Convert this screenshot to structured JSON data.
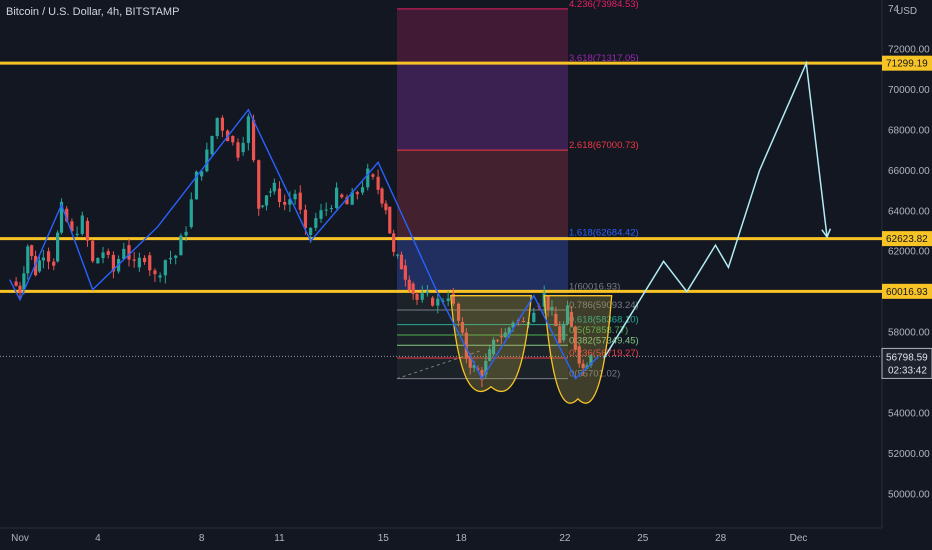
{
  "header": {
    "title": "Bitcoin / U.S. Dollar, 4h, BITSTAMP",
    "currency": "USD"
  },
  "chart_data": {
    "type": "candlestick",
    "title": "Bitcoin / U.S. Dollar, 4h, BITSTAMP",
    "xlabel": "",
    "ylabel": "",
    "ylim": [
      48500,
      74500
    ],
    "grid": false,
    "x_ticks": [
      {
        "label": "Nov",
        "day": 1
      },
      {
        "label": "4",
        "day": 4
      },
      {
        "label": "8",
        "day": 8
      },
      {
        "label": "11",
        "day": 11
      },
      {
        "label": "15",
        "day": 15
      },
      {
        "label": "18",
        "day": 18
      },
      {
        "label": "22",
        "day": 22
      },
      {
        "label": "25",
        "day": 25
      },
      {
        "label": "28",
        "day": 28
      },
      {
        "label": "Dec",
        "day": 31
      }
    ],
    "y_ticks": [
      "50000.00",
      "52000.00",
      "54000.00",
      "56000.00",
      "58000.00",
      "60000.00",
      "62000.00",
      "64000.00",
      "66000.00",
      "68000.00",
      "70000.00",
      "72000.00",
      "74"
    ],
    "price_path": [
      [
        0.7,
        60500
      ],
      [
        1.0,
        60100
      ],
      [
        1.3,
        62300
      ],
      [
        1.6,
        61000
      ],
      [
        1.9,
        62000
      ],
      [
        2.3,
        61500
      ],
      [
        2.6,
        64100
      ],
      [
        3.0,
        62800
      ],
      [
        3.4,
        63500
      ],
      [
        3.8,
        61400
      ],
      [
        4.2,
        62000
      ],
      [
        4.6,
        61000
      ],
      [
        5.0,
        62300
      ],
      [
        5.4,
        61200
      ],
      [
        5.8,
        61800
      ],
      [
        6.2,
        60700
      ],
      [
        6.6,
        61600
      ],
      [
        7.0,
        61800
      ],
      [
        7.4,
        63200
      ],
      [
        7.8,
        65700
      ],
      [
        8.2,
        66800
      ],
      [
        8.6,
        68600
      ],
      [
        9.0,
        67700
      ],
      [
        9.4,
        66900
      ],
      [
        9.8,
        68500
      ],
      [
        10.2,
        64200
      ],
      [
        10.5,
        64900
      ],
      [
        10.8,
        65100
      ],
      [
        11.2,
        64300
      ],
      [
        11.6,
        64900
      ],
      [
        12.0,
        62800
      ],
      [
        12.4,
        63600
      ],
      [
        12.8,
        64100
      ],
      [
        13.2,
        64800
      ],
      [
        13.6,
        64300
      ],
      [
        14.0,
        64900
      ],
      [
        14.4,
        65800
      ],
      [
        14.8,
        65100
      ],
      [
        15.1,
        64200
      ],
      [
        15.4,
        61800
      ],
      [
        15.7,
        61300
      ],
      [
        16.0,
        60400
      ],
      [
        16.3,
        59600
      ],
      [
        16.7,
        59700
      ],
      [
        17.1,
        59500
      ],
      [
        17.5,
        59900
      ],
      [
        17.9,
        58500
      ],
      [
        18.2,
        56800
      ],
      [
        18.5,
        56200
      ],
      [
        18.8,
        55900
      ],
      [
        19.1,
        56900
      ],
      [
        19.4,
        57800
      ],
      [
        19.7,
        57900
      ],
      [
        20.0,
        58600
      ],
      [
        20.4,
        58400
      ],
      [
        20.8,
        59300
      ],
      [
        21.2,
        59800
      ],
      [
        21.5,
        58900
      ],
      [
        21.8,
        57600
      ],
      [
        22.1,
        59000
      ],
      [
        22.4,
        57300
      ],
      [
        22.7,
        56200
      ],
      [
        23.0,
        57100
      ]
    ],
    "series": [
      {
        "name": "",
        "type": "zigzag",
        "points": [
          [
            0.6,
            60600
          ],
          [
            1.0,
            59600
          ],
          [
            2.6,
            64300
          ],
          [
            3.8,
            60100
          ],
          [
            6.3,
            63200
          ],
          [
            9.8,
            69000
          ],
          [
            12.2,
            62500
          ],
          [
            14.8,
            66400
          ],
          [
            17.0,
            60200
          ],
          [
            18.8,
            55700
          ],
          [
            20.8,
            59800
          ],
          [
            22.4,
            55700
          ],
          [
            23.3,
            56800
          ]
        ]
      },
      {
        "name": "",
        "type": "projection",
        "points": [
          [
            23.5,
            56700
          ],
          [
            25.8,
            61500
          ],
          [
            26.7,
            60000
          ],
          [
            27.8,
            62300
          ],
          [
            28.3,
            61200
          ],
          [
            29.5,
            66000
          ],
          [
            31.3,
            71300
          ],
          [
            32.1,
            62700
          ]
        ]
      },
      {
        "name": "",
        "type": "fibonacci",
        "from": [
          15.3,
          55700
        ],
        "to": [
          15.3,
          60016.93
        ],
        "levels": [
          {
            "ratio": "4.236",
            "value": 73984.53
          },
          {
            "ratio": "3.618",
            "value": 71317.05
          },
          {
            "ratio": "2.618",
            "value": 67000.73
          },
          {
            "ratio": "1.618",
            "value": 62684.42
          },
          {
            "ratio": "1",
            "value": 60016.93
          },
          {
            "ratio": "0.786",
            "value": 59093.24
          },
          {
            "ratio": "0.618",
            "value": 58368.1
          },
          {
            "ratio": "0.5",
            "value": 57858.77
          },
          {
            "ratio": "0.382",
            "value": 57349.45
          },
          {
            "ratio": "0.236",
            "value": 56719.27
          },
          {
            "ratio": "0",
            "value": 55701.02
          }
        ]
      }
    ],
    "annotations": [
      {
        "type": "horizontal-line",
        "value": 71299.19,
        "label": "71299.19",
        "color": "#f7c325"
      },
      {
        "type": "horizontal-line",
        "value": 62623.82,
        "label": "62623.82",
        "color": "#f7c325"
      },
      {
        "type": "horizontal-line",
        "value": 60016.93,
        "label": "60016.93",
        "color": "#f7c325"
      },
      {
        "type": "last-price",
        "value": 56798.59,
        "label": "56798.59",
        "countdown": "02:33:42"
      },
      {
        "type": "cup",
        "from_day": 17.6,
        "to_day": 20.7,
        "bottom": 55300
      },
      {
        "type": "cup",
        "from_day": 21.2,
        "to_day": 23.8,
        "bottom": 54700
      }
    ],
    "colors": {
      "background": "#131722",
      "up": "#26a69a",
      "down": "#ef5350",
      "zigzag": "#2962ff",
      "projection": "#b2ebf2",
      "level": "#f7c325",
      "fib_upper": "#9c27b0",
      "fib_lower": "#2962ff"
    }
  }
}
